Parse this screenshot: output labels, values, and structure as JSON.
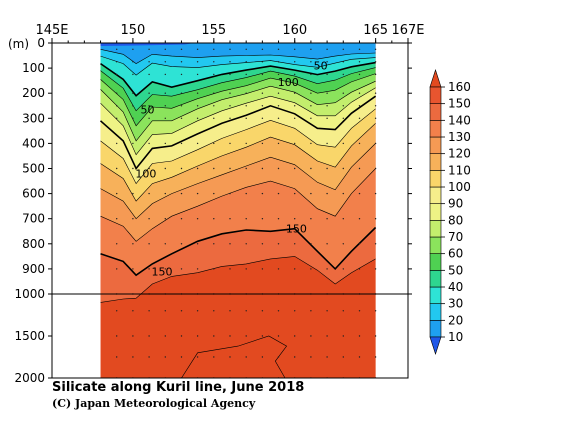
{
  "title": "Silicate along Kuril line, June 2018",
  "credit": "(C) Japan Meteorological Agency",
  "chart_data": {
    "type": "heatmap",
    "variable": "Silicate",
    "x_ticks": [
      "145E",
      "150",
      "155",
      "160",
      "165",
      "167E"
    ],
    "x_tick_values": [
      145,
      150,
      155,
      160,
      165,
      167
    ],
    "xlim": [
      145,
      167
    ],
    "ylabel": "(m)",
    "y_ticks_upper": [
      "0",
      "100",
      "200",
      "300",
      "400",
      "500",
      "600",
      "700",
      "800",
      "900",
      "1000"
    ],
    "y_ticks_lower": [
      "1500",
      "2000"
    ],
    "ylim": [
      0,
      2000
    ],
    "y_axis_break_depth": 1000,
    "data_extent_lon": [
      148,
      165
    ],
    "colorbar": {
      "labels": [
        "10",
        "20",
        "30",
        "40",
        "50",
        "60",
        "70",
        "80",
        "90",
        "100",
        "110",
        "120",
        "130",
        "140",
        "150",
        "160"
      ],
      "levels": [
        10,
        20,
        30,
        40,
        50,
        60,
        70,
        80,
        90,
        100,
        110,
        120,
        130,
        140,
        150,
        160
      ],
      "colors": [
        "#1f57e8",
        "#1ea0f0",
        "#22c8f0",
        "#2ee3d5",
        "#2ed68f",
        "#4fd152",
        "#8be35c",
        "#c3ee6d",
        "#eef385",
        "#f6ee8b",
        "#f9d66a",
        "#f7b15a",
        "#f59a54",
        "#f2804b",
        "#ec6a3f",
        "#e8552f",
        "#e24a20"
      ],
      "extend": "both"
    },
    "contour_labels": [
      {
        "value": "50",
        "lon": 161.6,
        "depth": 90
      },
      {
        "value": "50",
        "lon": 150.9,
        "depth": 265
      },
      {
        "value": "100",
        "lon": 159.6,
        "depth": 155
      },
      {
        "value": "100",
        "lon": 150.8,
        "depth": 520
      },
      {
        "value": "150",
        "lon": 160.1,
        "depth": 740
      },
      {
        "value": "150",
        "lon": 151.8,
        "depth": 910
      }
    ],
    "highlighted_contours": [
      50,
      100,
      150
    ],
    "contour_lines": [
      {
        "value": 30,
        "points": [
          [
            148,
            25
          ],
          [
            149.4,
            45
          ],
          [
            150.2,
            82
          ],
          [
            151.2,
            45
          ],
          [
            152.4,
            52
          ],
          [
            154,
            58
          ],
          [
            155.5,
            52
          ],
          [
            157,
            50
          ],
          [
            158.5,
            48
          ],
          [
            160,
            55
          ],
          [
            161.4,
            64
          ],
          [
            162.5,
            52
          ],
          [
            163.5,
            44
          ],
          [
            165,
            40
          ]
        ]
      },
      {
        "value": 40,
        "points": [
          [
            148,
            52
          ],
          [
            149.4,
            82
          ],
          [
            150.2,
            128
          ],
          [
            151.2,
            80
          ],
          [
            152.4,
            94
          ],
          [
            154,
            98
          ],
          [
            155.5,
            86
          ],
          [
            157,
            78
          ],
          [
            158.5,
            70
          ],
          [
            160,
            86
          ],
          [
            161.4,
            97
          ],
          [
            162.5,
            80
          ],
          [
            163.5,
            65
          ],
          [
            165,
            58
          ]
        ]
      },
      {
        "value": 50,
        "points": [
          [
            148,
            82
          ],
          [
            149.4,
            145
          ],
          [
            150.2,
            210
          ],
          [
            151.2,
            155
          ],
          [
            152.4,
            176
          ],
          [
            154,
            150
          ],
          [
            155.5,
            125
          ],
          [
            157,
            108
          ],
          [
            158.5,
            92
          ],
          [
            160,
            108
          ],
          [
            161.4,
            126
          ],
          [
            162.5,
            112
          ],
          [
            163.5,
            95
          ],
          [
            165,
            78
          ]
        ]
      },
      {
        "value": 60,
        "points": [
          [
            148,
            110
          ],
          [
            149.4,
            180
          ],
          [
            150.2,
            270
          ],
          [
            151.2,
            205
          ],
          [
            152.4,
            212
          ],
          [
            154,
            186
          ],
          [
            155.5,
            158
          ],
          [
            157,
            138
          ],
          [
            158.5,
            112
          ],
          [
            160,
            132
          ],
          [
            161.4,
            162
          ],
          [
            162.5,
            148
          ],
          [
            163.5,
            122
          ],
          [
            165,
            98
          ]
        ]
      },
      {
        "value": 70,
        "points": [
          [
            148,
            145
          ],
          [
            149.4,
            225
          ],
          [
            150.2,
            330
          ],
          [
            151.2,
            255
          ],
          [
            152.4,
            260
          ],
          [
            154,
            222
          ],
          [
            155.5,
            192
          ],
          [
            157,
            170
          ],
          [
            158.5,
            140
          ],
          [
            160,
            160
          ],
          [
            161.4,
            200
          ],
          [
            162.5,
            188
          ],
          [
            163.5,
            155
          ],
          [
            165,
            122
          ]
        ]
      },
      {
        "value": 80,
        "points": [
          [
            148,
            185
          ],
          [
            149.4,
            275
          ],
          [
            150.2,
            390
          ],
          [
            151.2,
            310
          ],
          [
            152.4,
            310
          ],
          [
            154,
            262
          ],
          [
            155.5,
            226
          ],
          [
            157,
            202
          ],
          [
            158.5,
            172
          ],
          [
            160,
            196
          ],
          [
            161.4,
            246
          ],
          [
            162.5,
            238
          ],
          [
            163.5,
            196
          ],
          [
            165,
            152
          ]
        ]
      },
      {
        "value": 90,
        "points": [
          [
            148,
            240
          ],
          [
            149.4,
            330
          ],
          [
            150.2,
            445
          ],
          [
            151.2,
            365
          ],
          [
            152.4,
            360
          ],
          [
            154,
            310
          ],
          [
            155.5,
            270
          ],
          [
            157,
            240
          ],
          [
            158.5,
            212
          ],
          [
            160,
            238
          ],
          [
            161.4,
            290
          ],
          [
            162.5,
            290
          ],
          [
            163.5,
            236
          ],
          [
            165,
            178
          ]
        ]
      },
      {
        "value": 100,
        "points": [
          [
            148,
            310
          ],
          [
            149.4,
            390
          ],
          [
            150.2,
            500
          ],
          [
            151.2,
            420
          ],
          [
            152.4,
            410
          ],
          [
            154,
            362
          ],
          [
            155.5,
            320
          ],
          [
            157,
            288
          ],
          [
            158.5,
            250
          ],
          [
            160,
            282
          ],
          [
            161.4,
            340
          ],
          [
            162.5,
            345
          ],
          [
            163.5,
            280
          ],
          [
            165,
            212
          ]
        ]
      },
      {
        "value": 110,
        "points": [
          [
            148,
            390
          ],
          [
            149.4,
            460
          ],
          [
            150.2,
            560
          ],
          [
            151.2,
            480
          ],
          [
            152.4,
            470
          ],
          [
            154,
            425
          ],
          [
            155.5,
            380
          ],
          [
            157,
            345
          ],
          [
            158.5,
            308
          ],
          [
            160,
            340
          ],
          [
            161.4,
            405
          ],
          [
            162.5,
            415
          ],
          [
            163.5,
            340
          ],
          [
            165,
            262
          ]
        ]
      },
      {
        "value": 120,
        "points": [
          [
            148,
            480
          ],
          [
            149.4,
            540
          ],
          [
            150.2,
            630
          ],
          [
            151.2,
            560
          ],
          [
            152.4,
            535
          ],
          [
            154,
            490
          ],
          [
            155.5,
            450
          ],
          [
            157,
            415
          ],
          [
            158.5,
            375
          ],
          [
            160,
            405
          ],
          [
            161.4,
            470
          ],
          [
            162.5,
            495
          ],
          [
            163.5,
            410
          ],
          [
            165,
            320
          ]
        ]
      },
      {
        "value": 130,
        "points": [
          [
            148,
            580
          ],
          [
            149.4,
            630
          ],
          [
            150.2,
            700
          ],
          [
            151.2,
            640
          ],
          [
            152.4,
            600
          ],
          [
            154,
            560
          ],
          [
            155.5,
            525
          ],
          [
            157,
            490
          ],
          [
            158.5,
            455
          ],
          [
            160,
            485
          ],
          [
            161.4,
            555
          ],
          [
            162.5,
            585
          ],
          [
            163.5,
            495
          ],
          [
            165,
            400
          ]
        ]
      },
      {
        "value": 140,
        "points": [
          [
            148,
            690
          ],
          [
            149.4,
            730
          ],
          [
            150.2,
            790
          ],
          [
            151.2,
            740
          ],
          [
            152.4,
            690
          ],
          [
            154,
            650
          ],
          [
            155.5,
            610
          ],
          [
            157,
            575
          ],
          [
            158.5,
            550
          ],
          [
            160,
            580
          ],
          [
            161.4,
            660
          ],
          [
            162.5,
            690
          ],
          [
            163.5,
            600
          ],
          [
            165,
            500
          ]
        ]
      },
      {
        "value": 150,
        "points": [
          [
            148,
            840
          ],
          [
            149.4,
            870
          ],
          [
            150.2,
            925
          ],
          [
            151.2,
            880
          ],
          [
            152.4,
            840
          ],
          [
            154,
            790
          ],
          [
            155.5,
            760
          ],
          [
            157,
            745
          ],
          [
            158.5,
            750
          ],
          [
            160,
            740
          ],
          [
            161.4,
            830
          ],
          [
            162.5,
            900
          ],
          [
            163.5,
            830
          ],
          [
            165,
            735
          ]
        ]
      },
      {
        "value": 155,
        "points": [
          [
            148,
            1100
          ],
          [
            149.4,
            1060
          ],
          [
            150.2,
            1050
          ],
          [
            151.2,
            960
          ],
          [
            152.4,
            930
          ],
          [
            154,
            915
          ],
          [
            155.5,
            890
          ],
          [
            157,
            880
          ],
          [
            158.5,
            860
          ],
          [
            160,
            850
          ],
          [
            161.4,
            905
          ],
          [
            162.5,
            960
          ],
          [
            163.5,
            915
          ],
          [
            165,
            860
          ]
        ]
      }
    ]
  }
}
